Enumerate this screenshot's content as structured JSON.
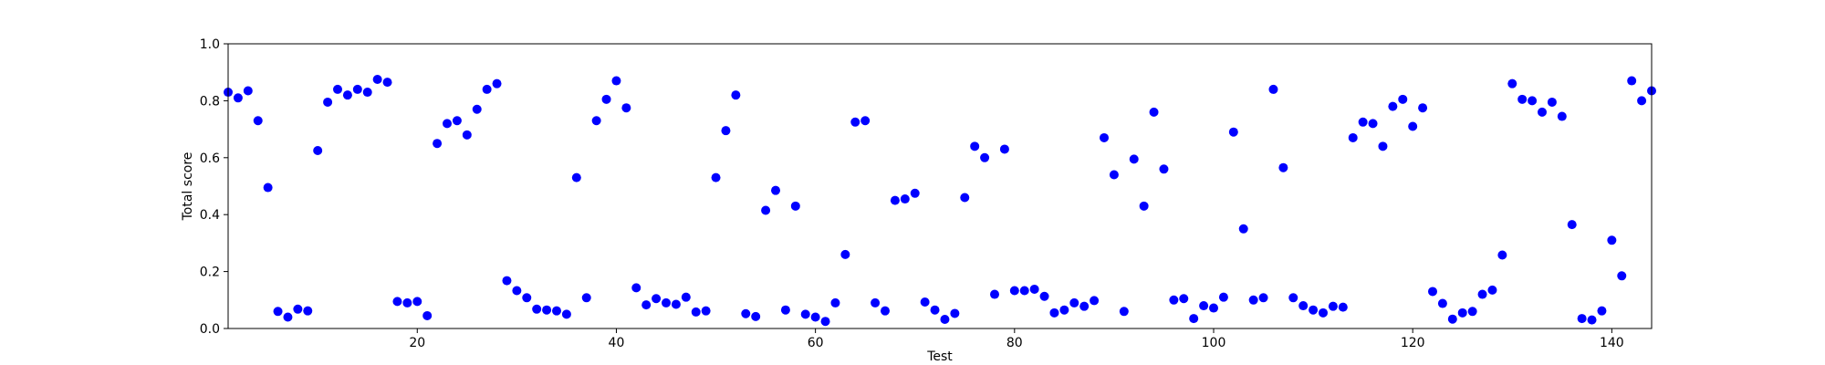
{
  "chart_data": {
    "type": "scatter",
    "title": "",
    "xlabel": "Test",
    "ylabel": "Total score",
    "xlim": [
      1,
      144
    ],
    "ylim": [
      0.0,
      1.0
    ],
    "xticks": [
      20,
      40,
      60,
      80,
      100,
      120,
      140
    ],
    "yticks": [
      0.0,
      0.2,
      0.4,
      0.6,
      0.8,
      1.0
    ],
    "xtick_labels": [
      "20",
      "40",
      "60",
      "80",
      "100",
      "120",
      "140"
    ],
    "ytick_labels": [
      "0.0",
      "0.2",
      "0.4",
      "0.6",
      "0.8",
      "1.0"
    ],
    "grid": false,
    "marker_color": "#0000ff",
    "x": [
      1,
      2,
      3,
      4,
      5,
      6,
      7,
      8,
      9,
      10,
      11,
      12,
      13,
      14,
      15,
      16,
      17,
      18,
      19,
      20,
      21,
      22,
      23,
      24,
      25,
      26,
      27,
      28,
      29,
      30,
      31,
      32,
      33,
      34,
      35,
      36,
      37,
      38,
      39,
      40,
      41,
      42,
      43,
      44,
      45,
      46,
      47,
      48,
      49,
      50,
      51,
      52,
      53,
      54,
      55,
      56,
      57,
      58,
      59,
      60,
      61,
      62,
      63,
      64,
      65,
      66,
      67,
      68,
      69,
      70,
      71,
      72,
      73,
      74,
      75,
      76,
      77,
      78,
      79,
      80,
      81,
      82,
      83,
      84,
      85,
      86,
      87,
      88,
      89,
      90,
      91,
      92,
      93,
      94,
      95,
      96,
      97,
      98,
      99,
      100,
      101,
      102,
      103,
      104,
      105,
      106,
      107,
      108,
      109,
      110,
      111,
      112,
      113,
      114,
      115,
      116,
      117,
      118,
      119,
      120,
      121,
      122,
      123,
      124,
      125,
      126,
      127,
      128,
      129,
      130,
      131,
      132,
      133,
      134,
      135,
      136,
      137,
      138,
      139,
      140,
      141,
      142,
      143,
      144
    ],
    "y": [
      0.83,
      0.81,
      0.835,
      0.73,
      0.495,
      0.06,
      0.04,
      0.068,
      0.062,
      0.625,
      0.795,
      0.84,
      0.82,
      0.84,
      0.83,
      0.875,
      0.865,
      0.095,
      0.09,
      0.095,
      0.045,
      0.65,
      0.72,
      0.73,
      0.68,
      0.77,
      0.84,
      0.86,
      0.168,
      0.133,
      0.108,
      0.068,
      0.065,
      0.062,
      0.05,
      0.53,
      0.108,
      0.73,
      0.805,
      0.87,
      0.775,
      0.143,
      0.083,
      0.105,
      0.09,
      0.085,
      0.11,
      0.058,
      0.062,
      0.53,
      0.695,
      0.82,
      0.052,
      0.042,
      0.415,
      0.485,
      0.065,
      0.43,
      0.05,
      0.04,
      0.025,
      0.09,
      0.26,
      0.725,
      0.73,
      0.09,
      0.062,
      0.45,
      0.455,
      0.475,
      0.093,
      0.065,
      0.032,
      0.053,
      0.46,
      0.64,
      0.6,
      0.12,
      0.63,
      0.133,
      0.133,
      0.138,
      0.113,
      0.055,
      0.065,
      0.09,
      0.078,
      0.098,
      0.67,
      0.54,
      0.06,
      0.595,
      0.43,
      0.76,
      0.56,
      0.1,
      0.105,
      0.035,
      0.08,
      0.072,
      0.11,
      0.69,
      0.35,
      0.1,
      0.108,
      0.84,
      0.565,
      0.108,
      0.08,
      0.065,
      0.055,
      0.078,
      0.075,
      0.67,
      0.725,
      0.72,
      0.64,
      0.78,
      0.805,
      0.71,
      0.775,
      0.13,
      0.088,
      0.033,
      0.055,
      0.06,
      0.12,
      0.135,
      0.258,
      0.86,
      0.805,
      0.8,
      0.76,
      0.795,
      0.745,
      0.365,
      0.035,
      0.03,
      0.062,
      0.31,
      0.185,
      0.87,
      0.8,
      0.835
    ]
  }
}
